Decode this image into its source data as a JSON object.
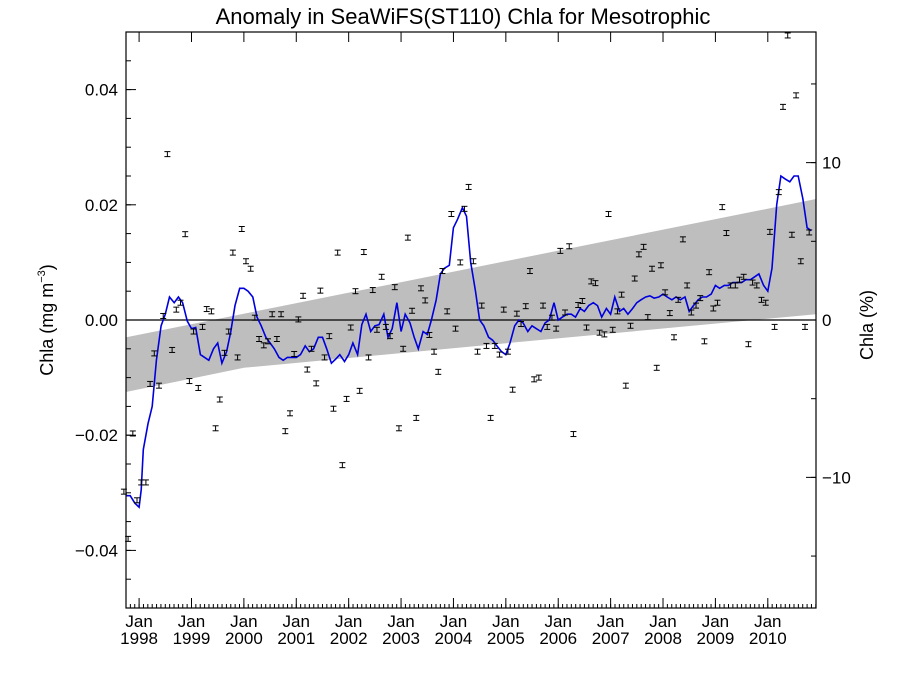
{
  "chart_data": {
    "type": "scatter",
    "title": "Anomaly in SeaWiFS(ST110) Chla for Mesotrophic",
    "ylabel_left": "Chla (mg m",
    "ylabel_left_sup": "−3",
    "ylabel_left_close": ")",
    "ylabel_right": "Chla (%)",
    "x_start": 1997.75,
    "x_end": 2010.92,
    "ylim": [
      -0.05,
      0.05
    ],
    "right_ylim_percent": [
      -18.3,
      18.3
    ],
    "grid": false,
    "x_ticks": [
      {
        "x": 1998,
        "month": "Jan",
        "year": "1998"
      },
      {
        "x": 1999,
        "month": "Jan",
        "year": "1999"
      },
      {
        "x": 2000,
        "month": "Jan",
        "year": "2000"
      },
      {
        "x": 2001,
        "month": "Jan",
        "year": "2001"
      },
      {
        "x": 2002,
        "month": "Jan",
        "year": "2002"
      },
      {
        "x": 2003,
        "month": "Jan",
        "year": "2003"
      },
      {
        "x": 2004,
        "month": "Jan",
        "year": "2004"
      },
      {
        "x": 2005,
        "month": "Jan",
        "year": "2005"
      },
      {
        "x": 2006,
        "month": "Jan",
        "year": "2006"
      },
      {
        "x": 2007,
        "month": "Jan",
        "year": "2007"
      },
      {
        "x": 2008,
        "month": "Jan",
        "year": "2008"
      },
      {
        "x": 2009,
        "month": "Jan",
        "year": "2009"
      },
      {
        "x": 2010,
        "month": "Jan",
        "year": "2010"
      }
    ],
    "y_ticks": [
      {
        "v": 0.04,
        "label": "0.04"
      },
      {
        "v": 0.02,
        "label": "0.02"
      },
      {
        "v": 0.0,
        "label": "0.00"
      },
      {
        "v": -0.02,
        "label": "−0.02"
      },
      {
        "v": -0.04,
        "label": "−0.04"
      }
    ],
    "y2_ticks": [
      {
        "pct": 10,
        "label": "10"
      },
      {
        "pct": 0,
        "label": "0"
      },
      {
        "pct": -10,
        "label": "−10"
      }
    ],
    "trend_band": {
      "upper": [
        [
          1997.75,
          -0.003
        ],
        [
          2010.92,
          0.021
        ]
      ],
      "lower_left": [
        [
          1997.75,
          -0.0125
        ],
        [
          2000.0,
          -0.0083
        ]
      ],
      "lower_right": [
        [
          2010.92,
          0.001
        ]
      ]
    },
    "monthly_anomalies": [
      [
        1997.71,
        -0.0298
      ],
      [
        1997.79,
        -0.038
      ],
      [
        1997.88,
        -0.0197
      ],
      [
        1997.96,
        -0.0313
      ],
      [
        1998.04,
        -0.0282
      ],
      [
        1998.13,
        -0.0282
      ],
      [
        1998.21,
        -0.0111
      ],
      [
        1998.29,
        -0.0058
      ],
      [
        1998.38,
        -0.0114
      ],
      [
        1998.46,
        0.0007
      ],
      [
        1998.54,
        0.0288
      ],
      [
        1998.63,
        -0.0052
      ],
      [
        1998.71,
        0.0018
      ],
      [
        1998.79,
        0.003
      ],
      [
        1998.88,
        0.0149
      ],
      [
        1998.96,
        -0.0106
      ],
      [
        1999.04,
        -0.002
      ],
      [
        1999.13,
        -0.0118
      ],
      [
        1999.21,
        -0.0012
      ],
      [
        1999.29,
        0.0019
      ],
      [
        1999.38,
        0.0015
      ],
      [
        1999.46,
        -0.0188
      ],
      [
        1999.54,
        -0.0138
      ],
      [
        1999.63,
        -0.0057
      ],
      [
        1999.71,
        -0.002
      ],
      [
        1999.79,
        0.0117
      ],
      [
        1999.88,
        -0.0065
      ],
      [
        1999.96,
        0.0158
      ],
      [
        2000.04,
        0.0102
      ],
      [
        2000.13,
        0.0089
      ],
      [
        2000.21,
        0.0004
      ],
      [
        2000.29,
        -0.0033
      ],
      [
        2000.38,
        -0.0044
      ],
      [
        2000.46,
        -0.0037
      ],
      [
        2000.54,
        0.001
      ],
      [
        2000.63,
        -0.0033
      ],
      [
        2000.71,
        0.001
      ],
      [
        2000.79,
        -0.0193
      ],
      [
        2000.88,
        -0.0162
      ],
      [
        2000.96,
        -0.0059
      ],
      [
        2001.04,
        0.0001
      ],
      [
        2001.13,
        0.0042
      ],
      [
        2001.21,
        -0.0086
      ],
      [
        2001.29,
        -0.005
      ],
      [
        2001.38,
        -0.011
      ],
      [
        2001.46,
        0.0051
      ],
      [
        2001.54,
        -0.0065
      ],
      [
        2001.63,
        -0.0028
      ],
      [
        2001.71,
        -0.0154
      ],
      [
        2001.79,
        0.0117
      ],
      [
        2001.88,
        -0.0252
      ],
      [
        2001.96,
        -0.0137
      ],
      [
        2002.04,
        -0.0013
      ],
      [
        2002.13,
        0.005
      ],
      [
        2002.21,
        -0.0123
      ],
      [
        2002.29,
        0.0118
      ],
      [
        2002.38,
        -0.0065
      ],
      [
        2002.46,
        0.0052
      ],
      [
        2002.54,
        -0.0017
      ],
      [
        2002.63,
        0.0075
      ],
      [
        2002.71,
        -0.0012
      ],
      [
        2002.79,
        -0.0028
      ],
      [
        2002.88,
        0.0057
      ],
      [
        2002.96,
        -0.0188
      ],
      [
        2003.04,
        -0.005
      ],
      [
        2003.13,
        0.0143
      ],
      [
        2003.21,
        0.0016
      ],
      [
        2003.29,
        -0.017
      ],
      [
        2003.38,
        0.0055
      ],
      [
        2003.46,
        0.0034
      ],
      [
        2003.54,
        -0.0026
      ],
      [
        2003.63,
        -0.0055
      ],
      [
        2003.71,
        -0.009
      ],
      [
        2003.79,
        0.0085
      ],
      [
        2003.88,
        0.0015
      ],
      [
        2003.96,
        0.0184
      ],
      [
        2004.04,
        -0.0015
      ],
      [
        2004.13,
        0.01
      ],
      [
        2004.21,
        0.0193
      ],
      [
        2004.29,
        0.0231
      ],
      [
        2004.38,
        0.0102
      ],
      [
        2004.46,
        -0.0055
      ],
      [
        2004.54,
        0.0025
      ],
      [
        2004.63,
        -0.0045
      ],
      [
        2004.71,
        -0.017
      ],
      [
        2004.79,
        -0.0045
      ],
      [
        2004.88,
        -0.006
      ],
      [
        2004.96,
        0.0018
      ],
      [
        2005.04,
        -0.0055
      ],
      [
        2005.13,
        -0.0121
      ],
      [
        2005.21,
        0.0011
      ],
      [
        2005.29,
        -0.0007
      ],
      [
        2005.38,
        0.0024
      ],
      [
        2005.46,
        0.0085
      ],
      [
        2005.54,
        -0.0103
      ],
      [
        2005.63,
        -0.01
      ],
      [
        2005.71,
        0.0025
      ],
      [
        2005.79,
        -0.0012
      ],
      [
        2005.88,
        0.0004
      ],
      [
        2005.96,
        -0.0015
      ],
      [
        2006.04,
        0.012
      ],
      [
        2006.13,
        0.0013
      ],
      [
        2006.21,
        0.0128
      ],
      [
        2006.29,
        -0.0198
      ],
      [
        2006.38,
        0.0026
      ],
      [
        2006.46,
        0.0033
      ],
      [
        2006.54,
        -0.0013
      ],
      [
        2006.63,
        0.0067
      ],
      [
        2006.71,
        0.0064
      ],
      [
        2006.79,
        -0.0022
      ],
      [
        2006.88,
        -0.0025
      ],
      [
        2006.96,
        0.0184
      ],
      [
        2007.04,
        -0.0017
      ],
      [
        2007.13,
        0.0015
      ],
      [
        2007.21,
        0.0044
      ],
      [
        2007.29,
        -0.0114
      ],
      [
        2007.38,
        -0.001
      ],
      [
        2007.46,
        0.0072
      ],
      [
        2007.54,
        0.0114
      ],
      [
        2007.63,
        0.0127
      ],
      [
        2007.71,
        0.0005
      ],
      [
        2007.79,
        0.0089
      ],
      [
        2007.88,
        -0.0083
      ],
      [
        2007.96,
        0.0095
      ],
      [
        2008.04,
        0.0048
      ],
      [
        2008.13,
        0.0012
      ],
      [
        2008.21,
        -0.003
      ],
      [
        2008.29,
        0.0035
      ],
      [
        2008.38,
        0.014
      ],
      [
        2008.46,
        0.006
      ],
      [
        2008.54,
        0.0013
      ],
      [
        2008.63,
        0.0025
      ],
      [
        2008.71,
        0.0038
      ],
      [
        2008.79,
        -0.0037
      ],
      [
        2008.88,
        0.0083
      ],
      [
        2008.96,
        0.002
      ],
      [
        2009.04,
        0.003
      ],
      [
        2009.13,
        0.0196
      ],
      [
        2009.21,
        0.0151
      ],
      [
        2009.29,
        0.006
      ],
      [
        2009.38,
        0.006
      ],
      [
        2009.46,
        0.007
      ],
      [
        2009.54,
        0.0075
      ],
      [
        2009.63,
        -0.0042
      ],
      [
        2009.71,
        0.0065
      ],
      [
        2009.79,
        0.006
      ],
      [
        2009.88,
        0.0035
      ],
      [
        2009.96,
        0.003
      ],
      [
        2010.04,
        0.0153
      ],
      [
        2010.13,
        -0.0012
      ],
      [
        2010.21,
        0.0222
      ],
      [
        2010.29,
        0.037
      ],
      [
        2010.38,
        0.0494
      ],
      [
        2010.46,
        0.0148
      ],
      [
        2010.54,
        0.039
      ],
      [
        2010.63,
        0.0102
      ],
      [
        2010.71,
        -0.0012
      ],
      [
        2010.79,
        0.0152
      ]
    ],
    "smoothed_line": [
      [
        1997.75,
        -0.0305
      ],
      [
        1997.83,
        -0.0305
      ],
      [
        1997.92,
        -0.0318
      ],
      [
        1998.0,
        -0.0325
      ],
      [
        1998.04,
        -0.0295
      ],
      [
        1998.08,
        -0.0225
      ],
      [
        1998.17,
        -0.018
      ],
      [
        1998.25,
        -0.015
      ],
      [
        1998.33,
        -0.007
      ],
      [
        1998.42,
        -0.001
      ],
      [
        1998.5,
        0.001
      ],
      [
        1998.58,
        0.004
      ],
      [
        1998.67,
        0.003
      ],
      [
        1998.75,
        0.004
      ],
      [
        1998.83,
        0.003
      ],
      [
        1998.92,
        -0.0002
      ],
      [
        1999.0,
        -0.0015
      ],
      [
        1999.08,
        -0.0013
      ],
      [
        1999.17,
        -0.006
      ],
      [
        1999.25,
        -0.0065
      ],
      [
        1999.33,
        -0.007
      ],
      [
        1999.42,
        -0.005
      ],
      [
        1999.5,
        -0.004
      ],
      [
        1999.58,
        -0.0075
      ],
      [
        1999.67,
        -0.0055
      ],
      [
        1999.75,
        -0.002
      ],
      [
        1999.83,
        0.0025
      ],
      [
        1999.92,
        0.0055
      ],
      [
        2000.0,
        0.0055
      ],
      [
        2000.08,
        0.005
      ],
      [
        2000.17,
        0.004
      ],
      [
        2000.25,
        0.0005
      ],
      [
        2000.33,
        -0.001
      ],
      [
        2000.42,
        -0.003
      ],
      [
        2000.5,
        -0.004
      ],
      [
        2000.58,
        -0.005
      ],
      [
        2000.67,
        -0.0065
      ],
      [
        2000.75,
        -0.007
      ],
      [
        2000.83,
        -0.0065
      ],
      [
        2000.92,
        -0.0065
      ],
      [
        2001.0,
        -0.0065
      ],
      [
        2001.08,
        -0.006
      ],
      [
        2001.17,
        -0.0045
      ],
      [
        2001.25,
        -0.0055
      ],
      [
        2001.33,
        -0.005
      ],
      [
        2001.42,
        -0.003
      ],
      [
        2001.5,
        -0.003
      ],
      [
        2001.58,
        -0.005
      ],
      [
        2001.67,
        -0.0075
      ],
      [
        2001.75,
        -0.0068
      ],
      [
        2001.83,
        -0.006
      ],
      [
        2001.92,
        -0.0072
      ],
      [
        2002.0,
        -0.006
      ],
      [
        2002.08,
        -0.004
      ],
      [
        2002.17,
        -0.006
      ],
      [
        2002.25,
        -0.0008
      ],
      [
        2002.33,
        0.001
      ],
      [
        2002.42,
        -0.002
      ],
      [
        2002.5,
        -0.001
      ],
      [
        2002.58,
        -0.0008
      ],
      [
        2002.67,
        0.001
      ],
      [
        2002.75,
        -0.003
      ],
      [
        2002.83,
        -0.0015
      ],
      [
        2002.92,
        0.003
      ],
      [
        2003.0,
        -0.002
      ],
      [
        2003.08,
        0.001
      ],
      [
        2003.17,
        -0.0005
      ],
      [
        2003.25,
        -0.003
      ],
      [
        2003.33,
        -0.005
      ],
      [
        2003.42,
        -0.002
      ],
      [
        2003.5,
        -0.0025
      ],
      [
        2003.58,
        0.0
      ],
      [
        2003.67,
        0.0035
      ],
      [
        2003.75,
        0.008
      ],
      [
        2003.83,
        0.009
      ],
      [
        2003.92,
        0.0095
      ],
      [
        2004.0,
        0.016
      ],
      [
        2004.08,
        0.0175
      ],
      [
        2004.17,
        0.0195
      ],
      [
        2004.25,
        0.018
      ],
      [
        2004.33,
        0.01
      ],
      [
        2004.42,
        0.005
      ],
      [
        2004.5,
        0.0
      ],
      [
        2004.58,
        -0.001
      ],
      [
        2004.67,
        -0.003
      ],
      [
        2004.75,
        -0.0035
      ],
      [
        2004.83,
        -0.0045
      ],
      [
        2004.92,
        -0.0055
      ],
      [
        2005.0,
        -0.006
      ],
      [
        2005.08,
        -0.004
      ],
      [
        2005.17,
        -0.001
      ],
      [
        2005.25,
        0.0
      ],
      [
        2005.33,
        -0.0005
      ],
      [
        2005.42,
        -0.002
      ],
      [
        2005.5,
        -0.001
      ],
      [
        2005.58,
        -0.0015
      ],
      [
        2005.67,
        -0.002
      ],
      [
        2005.75,
        -0.0005
      ],
      [
        2005.83,
        0.0
      ],
      [
        2005.92,
        0.003
      ],
      [
        2006.0,
        0.0
      ],
      [
        2006.08,
        0.0005
      ],
      [
        2006.17,
        0.001
      ],
      [
        2006.25,
        0.001
      ],
      [
        2006.33,
        0.0005
      ],
      [
        2006.42,
        0.002
      ],
      [
        2006.5,
        0.0015
      ],
      [
        2006.58,
        0.0025
      ],
      [
        2006.67,
        0.003
      ],
      [
        2006.75,
        0.0025
      ],
      [
        2006.83,
        0.0005
      ],
      [
        2006.92,
        0.002
      ],
      [
        2007.0,
        0.001
      ],
      [
        2007.08,
        0.004
      ],
      [
        2007.17,
        0.0015
      ],
      [
        2007.25,
        0.002
      ],
      [
        2007.33,
        0.001
      ],
      [
        2007.42,
        0.002
      ],
      [
        2007.5,
        0.003
      ],
      [
        2007.58,
        0.0035
      ],
      [
        2007.67,
        0.004
      ],
      [
        2007.75,
        0.0042
      ],
      [
        2007.83,
        0.0038
      ],
      [
        2007.92,
        0.004
      ],
      [
        2008.0,
        0.0045
      ],
      [
        2008.08,
        0.004
      ],
      [
        2008.17,
        0.0035
      ],
      [
        2008.25,
        0.004
      ],
      [
        2008.33,
        0.0035
      ],
      [
        2008.42,
        0.004
      ],
      [
        2008.5,
        0.0015
      ],
      [
        2008.58,
        0.0025
      ],
      [
        2008.67,
        0.0035
      ],
      [
        2008.75,
        0.004
      ],
      [
        2008.83,
        0.004
      ],
      [
        2008.92,
        0.0045
      ],
      [
        2009.0,
        0.006
      ],
      [
        2009.08,
        0.0055
      ],
      [
        2009.17,
        0.006
      ],
      [
        2009.25,
        0.006
      ],
      [
        2009.33,
        0.0065
      ],
      [
        2009.42,
        0.0065
      ],
      [
        2009.5,
        0.0065
      ],
      [
        2009.58,
        0.007
      ],
      [
        2009.67,
        0.007
      ],
      [
        2009.75,
        0.0075
      ],
      [
        2009.83,
        0.008
      ],
      [
        2009.92,
        0.006
      ],
      [
        2010.0,
        0.005
      ],
      [
        2010.08,
        0.009
      ],
      [
        2010.17,
        0.02
      ],
      [
        2010.25,
        0.025
      ],
      [
        2010.33,
        0.0245
      ],
      [
        2010.42,
        0.024
      ],
      [
        2010.5,
        0.025
      ],
      [
        2010.58,
        0.025
      ],
      [
        2010.67,
        0.021
      ],
      [
        2010.75,
        0.016
      ],
      [
        2010.83,
        0.0155
      ]
    ],
    "colors": {
      "line": "#0000dd",
      "band": "#bebebe",
      "points": "#000000",
      "zero_line": "#000000"
    }
  }
}
